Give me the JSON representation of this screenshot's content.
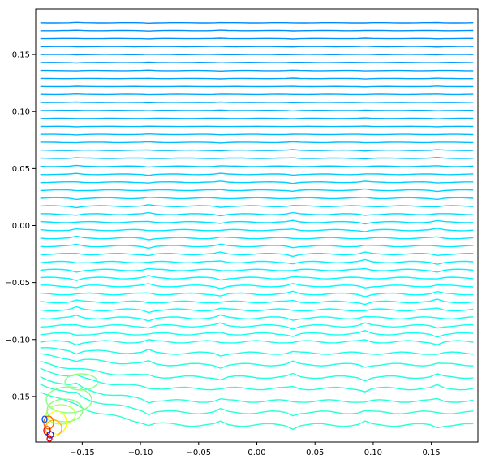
{
  "chart_data": {
    "type": "contour",
    "title": "",
    "xlabel": "",
    "ylabel": "",
    "xlim": [
      -0.19,
      0.19
    ],
    "ylim": [
      -0.19,
      0.19
    ],
    "x_ticks": [
      -0.15,
      -0.1,
      -0.05,
      0.0,
      0.05,
      0.1,
      0.15
    ],
    "x_tick_labels": [
      "−0.15",
      "−0.10",
      "−0.05",
      "0.00",
      "0.05",
      "0.10",
      "0.15"
    ],
    "y_ticks": [
      0.15,
      0.1,
      0.05,
      0.0,
      -0.05,
      -0.1,
      -0.15
    ],
    "y_tick_labels": [
      "0.15",
      "0.10",
      "0.05",
      "0.00",
      "−0.05",
      "−0.10",
      "−0.15"
    ],
    "grid": false,
    "colormap": "jet",
    "level_y_positions": [
      0.178,
      0.171,
      0.164,
      0.157,
      0.15,
      0.143,
      0.136,
      0.129,
      0.122,
      0.115,
      0.108,
      0.101,
      0.094,
      0.087,
      0.08,
      0.073,
      0.066,
      0.059,
      0.052,
      0.045,
      0.038,
      0.031,
      0.024,
      0.017,
      0.01,
      0.003,
      -0.004,
      -0.011,
      -0.018,
      -0.025,
      -0.032,
      -0.039,
      -0.046,
      -0.053,
      -0.06,
      -0.067,
      -0.074,
      -0.081,
      -0.088,
      -0.095,
      -0.102,
      -0.112,
      -0.122,
      -0.133,
      -0.143,
      -0.154,
      -0.164,
      -0.175
    ]
  }
}
